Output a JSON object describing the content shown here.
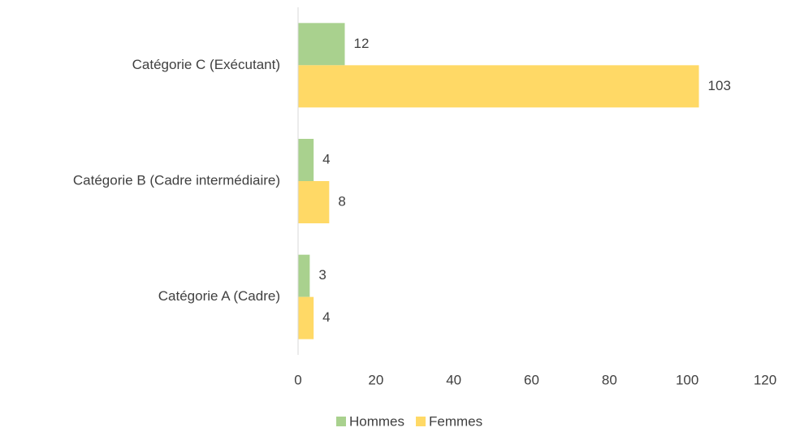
{
  "chart_data": {
    "type": "hbar",
    "categories": [
      "Catégorie C (Exécutant)",
      "Catégorie B (Cadre intermédiaire)",
      "Catégorie A (Cadre)"
    ],
    "series": [
      {
        "name": "Hommes",
        "color": "#a9d18e",
        "values": [
          12,
          4,
          3
        ]
      },
      {
        "name": "Femmes",
        "color": "#ffd966",
        "values": [
          103,
          8,
          4
        ]
      }
    ],
    "xlim": [
      0,
      120
    ],
    "xticks": [
      0,
      20,
      40,
      60,
      80,
      100,
      120
    ],
    "grid": false,
    "legend": "bottom"
  }
}
